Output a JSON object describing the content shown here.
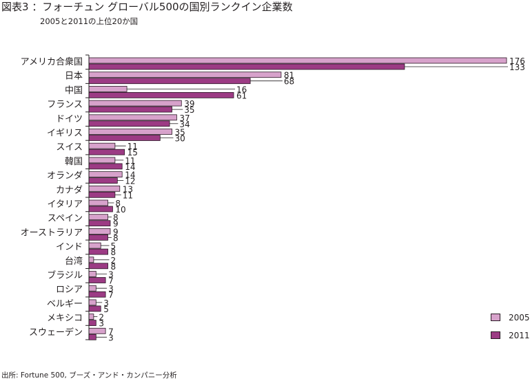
{
  "header": {
    "title": "図表3 ：フォーチュン グローバル500の国別ランクイン企業数",
    "subtitle": "2005と2011の上位20か国"
  },
  "footer": {
    "source": "出所: Fortune 500, ブーズ・アンド・カンパニー分析"
  },
  "colors": {
    "series_2005": "#d7a2cb",
    "series_2011": "#9c3b84",
    "axis": "#231f20"
  },
  "chart_data": {
    "type": "bar",
    "orientation": "horizontal",
    "title": "図表3 ：フォーチュン グローバル500の国別ランクイン企業数",
    "subtitle": "2005と2011の上位20か国",
    "categories": [
      "アメリカ合衆国",
      "日本",
      "中国",
      "フランス",
      "ドイツ",
      "イギリス",
      "スイス",
      "韓国",
      "オランダ",
      "カナダ",
      "イタリア",
      "スペイン",
      "オーストラリア",
      "インド",
      "台湾",
      "ブラジル",
      "ロシア",
      "ベルギー",
      "メキシコ",
      "スウェーデン"
    ],
    "series": [
      {
        "name": "2005",
        "values": [
          176,
          81,
          16,
          39,
          37,
          35,
          11,
          11,
          14,
          13,
          8,
          8,
          9,
          5,
          2,
          3,
          3,
          3,
          2,
          7
        ]
      },
      {
        "name": "2011",
        "values": [
          133,
          68,
          61,
          35,
          34,
          30,
          15,
          14,
          12,
          11,
          10,
          9,
          8,
          8,
          8,
          7,
          7,
          5,
          3,
          3
        ]
      }
    ],
    "xlim": [
      0,
      176
    ],
    "grid": false,
    "legend_position": "bottom-right"
  }
}
